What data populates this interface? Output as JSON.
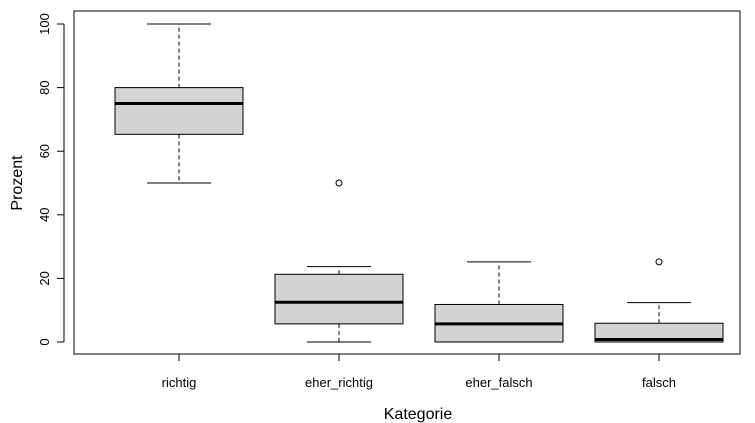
{
  "chart_data": {
    "type": "boxplot",
    "title": "",
    "xlabel": "Kategorie",
    "ylabel": "Prozent",
    "ylim": [
      -3,
      104
    ],
    "yticks": [
      0,
      20,
      40,
      60,
      80,
      100
    ],
    "categories": [
      "richtig",
      "eher_richtig",
      "eher_falsch",
      "falsch"
    ],
    "boxes": [
      {
        "category": "richtig",
        "whisker_low": 50,
        "q1": 65.3,
        "median": 75,
        "q3": 80,
        "whisker_high": 100,
        "outliers": []
      },
      {
        "category": "eher_richtig",
        "whisker_low": 0,
        "q1": 5.7,
        "median": 12.5,
        "q3": 21.3,
        "whisker_high": 23.7,
        "outliers": [
          50
        ]
      },
      {
        "category": "eher_falsch",
        "whisker_low": 0,
        "q1": 0,
        "median": 5.7,
        "q3": 11.8,
        "whisker_high": 25.2,
        "outliers": []
      },
      {
        "category": "falsch",
        "whisker_low": 0,
        "q1": 0,
        "median": 0.8,
        "q3": 5.9,
        "whisker_high": 12.4,
        "outliers": [
          25.2
        ]
      }
    ],
    "grid": false,
    "box_fill": "#d3d3d3",
    "line_color": "#000000"
  }
}
